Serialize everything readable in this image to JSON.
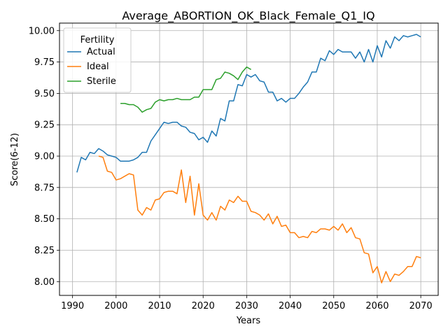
{
  "chart_data": {
    "type": "line",
    "title": "Average_ABORTION_OK_Black_Female_Q1_IQ",
    "xlabel": "Years",
    "ylabel": "Score(6-12)",
    "xlim": [
      1987,
      2074
    ],
    "ylim": [
      7.89,
      10.06
    ],
    "xticks": [
      "1990",
      "2000",
      "2010",
      "2020",
      "2030",
      "2040",
      "2050",
      "2060",
      "2070"
    ],
    "yticks": [
      "8.00",
      "8.25",
      "8.50",
      "8.75",
      "9.00",
      "9.25",
      "9.50",
      "9.75",
      "10.00"
    ],
    "grid": true,
    "legend": {
      "title": "Fertility",
      "placement": "upper-left"
    },
    "series": [
      {
        "name": "Actual",
        "color": "#1f77b4",
        "x": [
          1991,
          1992,
          1993,
          1994,
          1995,
          1996,
          1997,
          1998,
          1999,
          2000,
          2001,
          2002,
          2003,
          2004,
          2005,
          2006,
          2007,
          2008,
          2009,
          2010,
          2011,
          2012,
          2013,
          2014,
          2015,
          2016,
          2017,
          2018,
          2019,
          2020,
          2021,
          2022,
          2023,
          2024,
          2025,
          2026,
          2027,
          2028,
          2029,
          2030,
          2031,
          2032,
          2033,
          2034,
          2035,
          2036,
          2037,
          2038,
          2039,
          2040,
          2041,
          2042,
          2043,
          2044,
          2045,
          2046,
          2047,
          2048,
          2049,
          2050,
          2051,
          2052,
          2053,
          2054,
          2055,
          2056,
          2057,
          2058,
          2059,
          2060,
          2061,
          2062,
          2063,
          2064,
          2065,
          2066,
          2067,
          2068,
          2069,
          2070
        ],
        "y": [
          8.87,
          8.99,
          8.97,
          9.03,
          9.02,
          9.06,
          9.04,
          9.01,
          9.0,
          8.99,
          8.96,
          8.96,
          8.96,
          8.97,
          8.99,
          9.03,
          9.03,
          9.12,
          9.17,
          9.22,
          9.27,
          9.26,
          9.27,
          9.27,
          9.24,
          9.23,
          9.19,
          9.18,
          9.13,
          9.15,
          9.11,
          9.2,
          9.16,
          9.3,
          9.28,
          9.44,
          9.44,
          9.57,
          9.56,
          9.65,
          9.63,
          9.65,
          9.6,
          9.59,
          9.51,
          9.51,
          9.44,
          9.46,
          9.43,
          9.46,
          9.46,
          9.5,
          9.55,
          9.59,
          9.67,
          9.67,
          9.78,
          9.76,
          9.84,
          9.81,
          9.85,
          9.83,
          9.83,
          9.83,
          9.78,
          9.83,
          9.75,
          9.85,
          9.75,
          9.88,
          9.79,
          9.92,
          9.86,
          9.95,
          9.92,
          9.96,
          9.95,
          9.96,
          9.97,
          9.95
        ]
      },
      {
        "name": "Ideal",
        "color": "#ff7f0e",
        "x": [
          1996,
          1997,
          1998,
          1999,
          2000,
          2001,
          2002,
          2003,
          2004,
          2005,
          2006,
          2007,
          2008,
          2009,
          2010,
          2011,
          2012,
          2013,
          2014,
          2015,
          2016,
          2017,
          2018,
          2019,
          2020,
          2021,
          2022,
          2023,
          2024,
          2025,
          2026,
          2027,
          2028,
          2029,
          2030,
          2031,
          2032,
          2033,
          2034,
          2035,
          2036,
          2037,
          2038,
          2039,
          2040,
          2041,
          2042,
          2043,
          2044,
          2045,
          2046,
          2047,
          2048,
          2049,
          2050,
          2051,
          2052,
          2053,
          2054,
          2055,
          2056,
          2057,
          2058,
          2059,
          2060,
          2061,
          2062,
          2063,
          2064,
          2065,
          2066,
          2067,
          2068,
          2069,
          2070
        ],
        "y": [
          9.0,
          8.99,
          8.88,
          8.87,
          8.81,
          8.82,
          8.84,
          8.86,
          8.85,
          8.57,
          8.53,
          8.59,
          8.57,
          8.65,
          8.66,
          8.71,
          8.72,
          8.72,
          8.7,
          8.89,
          8.63,
          8.84,
          8.53,
          8.78,
          8.53,
          8.49,
          8.55,
          8.49,
          8.6,
          8.57,
          8.65,
          8.63,
          8.68,
          8.64,
          8.64,
          8.56,
          8.55,
          8.53,
          8.49,
          8.54,
          8.46,
          8.52,
          8.44,
          8.45,
          8.39,
          8.39,
          8.35,
          8.36,
          8.35,
          8.4,
          8.39,
          8.42,
          8.42,
          8.41,
          8.44,
          8.41,
          8.46,
          8.39,
          8.43,
          8.35,
          8.34,
          8.23,
          8.22,
          8.07,
          8.12,
          7.99,
          8.08,
          8.0,
          8.06,
          8.05,
          8.08,
          8.12,
          8.12,
          8.2,
          8.19
        ]
      },
      {
        "name": "Sterile",
        "color": "#2ca02c",
        "x": [
          2001,
          2002,
          2003,
          2004,
          2005,
          2006,
          2007,
          2008,
          2009,
          2010,
          2011,
          2012,
          2013,
          2014,
          2015,
          2016,
          2017,
          2018,
          2019,
          2020,
          2021,
          2022,
          2023,
          2024,
          2025,
          2026,
          2027,
          2028,
          2029,
          2030,
          2031
        ],
        "y": [
          9.42,
          9.42,
          9.41,
          9.41,
          9.39,
          9.35,
          9.37,
          9.38,
          9.43,
          9.45,
          9.44,
          9.45,
          9.45,
          9.46,
          9.45,
          9.45,
          9.45,
          9.47,
          9.47,
          9.53,
          9.53,
          9.53,
          9.61,
          9.62,
          9.67,
          9.66,
          9.64,
          9.61,
          9.67,
          9.71,
          9.69
        ]
      }
    ]
  }
}
